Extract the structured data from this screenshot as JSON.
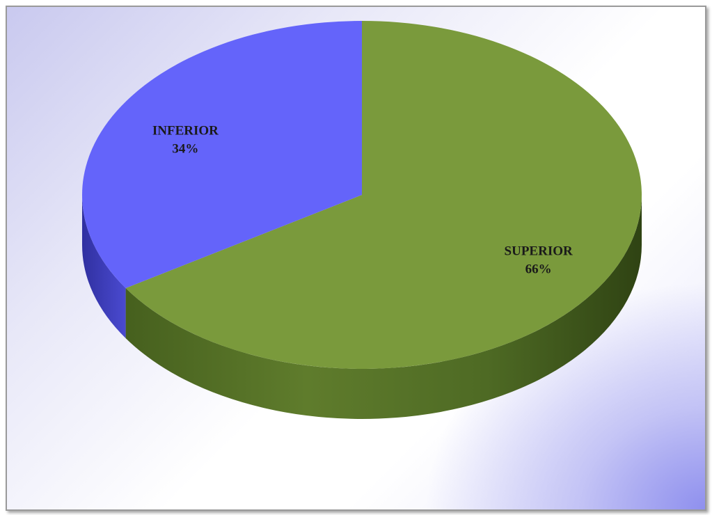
{
  "chart_data": {
    "type": "pie",
    "title": "",
    "three_d": true,
    "slices": [
      {
        "label": "SUPERIOR",
        "value": 66,
        "value_label": "66%",
        "color": "#7a9a3c",
        "side_color": "#4a6022"
      },
      {
        "label": "INFERIOR",
        "value": 34,
        "value_label": "34%",
        "color": "#6464fa",
        "side_color": "#3a3aa8"
      }
    ],
    "legend": "none",
    "start_angle_deg": 0,
    "direction": "clockwise"
  }
}
